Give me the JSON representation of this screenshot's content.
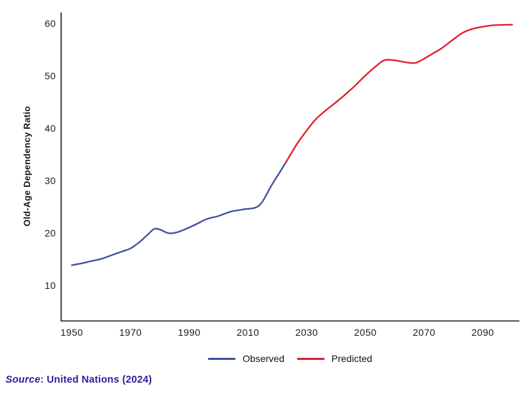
{
  "colors": {
    "axis": "#1a1a1a",
    "observed": "#414f9f",
    "predicted": "#e01f2d",
    "source_text": "#2f1f9c",
    "tick_text": "#1b1b1b"
  },
  "legend": {
    "observed_label": "Observed",
    "predicted_label": "Predicted"
  },
  "source": {
    "prefix": "Source",
    "suffix": ": United Nations (2024)"
  },
  "chart_data": {
    "type": "line",
    "title": "",
    "xlabel": "",
    "ylabel": "Old-Age Dependency Ratio",
    "x_ticks": [
      1950,
      1970,
      1990,
      2010,
      2030,
      2050,
      2070,
      2090
    ],
    "y_ticks": [
      60,
      50,
      40,
      30,
      20,
      10
    ],
    "xlim": [
      1946,
      2103
    ],
    "ylim": [
      3,
      62
    ],
    "grid": false,
    "legend_position": "bottom-center",
    "series": [
      {
        "name": "Observed",
        "color": "#414f9f",
        "points": [
          [
            1950,
            13.8
          ],
          [
            1953,
            14.1
          ],
          [
            1956,
            14.5
          ],
          [
            1960,
            15.0
          ],
          [
            1964,
            15.8
          ],
          [
            1967,
            16.4
          ],
          [
            1970,
            17.0
          ],
          [
            1973,
            18.2
          ],
          [
            1976,
            19.7
          ],
          [
            1978,
            20.7
          ],
          [
            1980,
            20.6
          ],
          [
            1983,
            19.9
          ],
          [
            1986,
            20.1
          ],
          [
            1990,
            21.0
          ],
          [
            1993,
            21.8
          ],
          [
            1996,
            22.6
          ],
          [
            2000,
            23.2
          ],
          [
            2004,
            24.0
          ],
          [
            2007,
            24.3
          ],
          [
            2009,
            24.5
          ],
          [
            2011,
            24.6
          ],
          [
            2013,
            24.9
          ],
          [
            2015,
            26.0
          ],
          [
            2018,
            29.0
          ],
          [
            2021,
            31.7
          ],
          [
            2023,
            33.5
          ]
        ]
      },
      {
        "name": "Predicted",
        "color": "#e01f2d",
        "points": [
          [
            2023,
            33.5
          ],
          [
            2025,
            35.4
          ],
          [
            2027,
            37.2
          ],
          [
            2030,
            39.5
          ],
          [
            2033,
            41.6
          ],
          [
            2036,
            43.1
          ],
          [
            2040,
            44.9
          ],
          [
            2043,
            46.3
          ],
          [
            2046,
            47.8
          ],
          [
            2050,
            50.0
          ],
          [
            2053,
            51.5
          ],
          [
            2056,
            52.8
          ],
          [
            2058,
            53.0
          ],
          [
            2061,
            52.8
          ],
          [
            2064,
            52.5
          ],
          [
            2067,
            52.4
          ],
          [
            2070,
            53.2
          ],
          [
            2073,
            54.2
          ],
          [
            2076,
            55.2
          ],
          [
            2080,
            56.9
          ],
          [
            2083,
            58.1
          ],
          [
            2086,
            58.8
          ],
          [
            2090,
            59.3
          ],
          [
            2094,
            59.6
          ],
          [
            2100,
            59.7
          ]
        ]
      }
    ]
  }
}
